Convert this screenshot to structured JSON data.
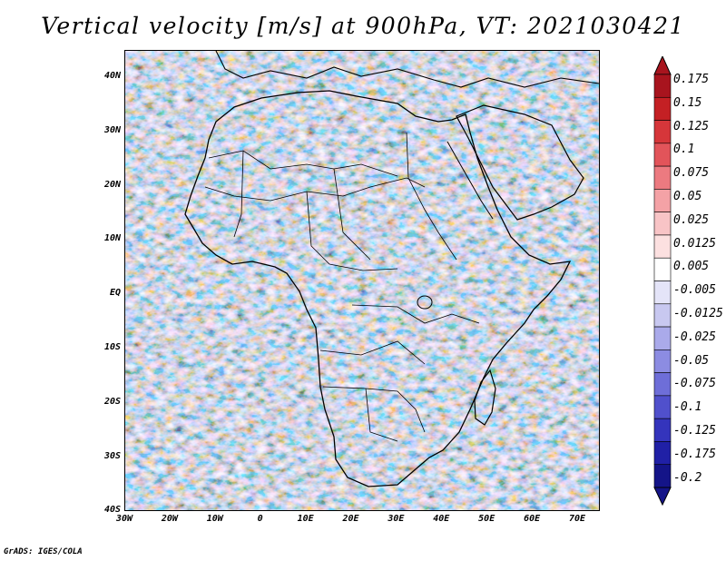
{
  "title": "Vertical velocity [m/s] at 900hPa, VT: 2021030421",
  "footer": "GrADS: IGES/COLA",
  "lat_ticks": [
    "40N",
    "30N",
    "20N",
    "10N",
    "EQ",
    "10S",
    "20S",
    "30S",
    "40S"
  ],
  "lon_ticks": [
    "30W",
    "20W",
    "10W",
    "0",
    "10E",
    "20E",
    "30E",
    "40E",
    "50E",
    "60E",
    "70E"
  ],
  "colorbar": {
    "labels": [
      "0.175",
      "0.15",
      "0.125",
      "0.1",
      "0.075",
      "0.05",
      "0.025",
      "0.0125",
      "0.005",
      "-0.005",
      "-0.0125",
      "-0.025",
      "-0.05",
      "-0.075",
      "-0.1",
      "-0.125",
      "-0.175",
      "-0.2"
    ],
    "colors": [
      "#a8141e",
      "#c42024",
      "#d6363a",
      "#e2545a",
      "#ec7a80",
      "#f4a2a6",
      "#f8c4c6",
      "#fce0e0",
      "#ffffff",
      "#e4e4f8",
      "#c8c8f0",
      "#aaaaea",
      "#8c8ce2",
      "#6e6ed8",
      "#5050cc",
      "#3434bc",
      "#2020a6",
      "#141488"
    ]
  },
  "map": {
    "domain": {
      "lon": [
        -30,
        75
      ],
      "lat": [
        -40,
        45
      ]
    },
    "field": "vertical velocity",
    "level": "900hPa",
    "valid_time": "2021030421"
  }
}
